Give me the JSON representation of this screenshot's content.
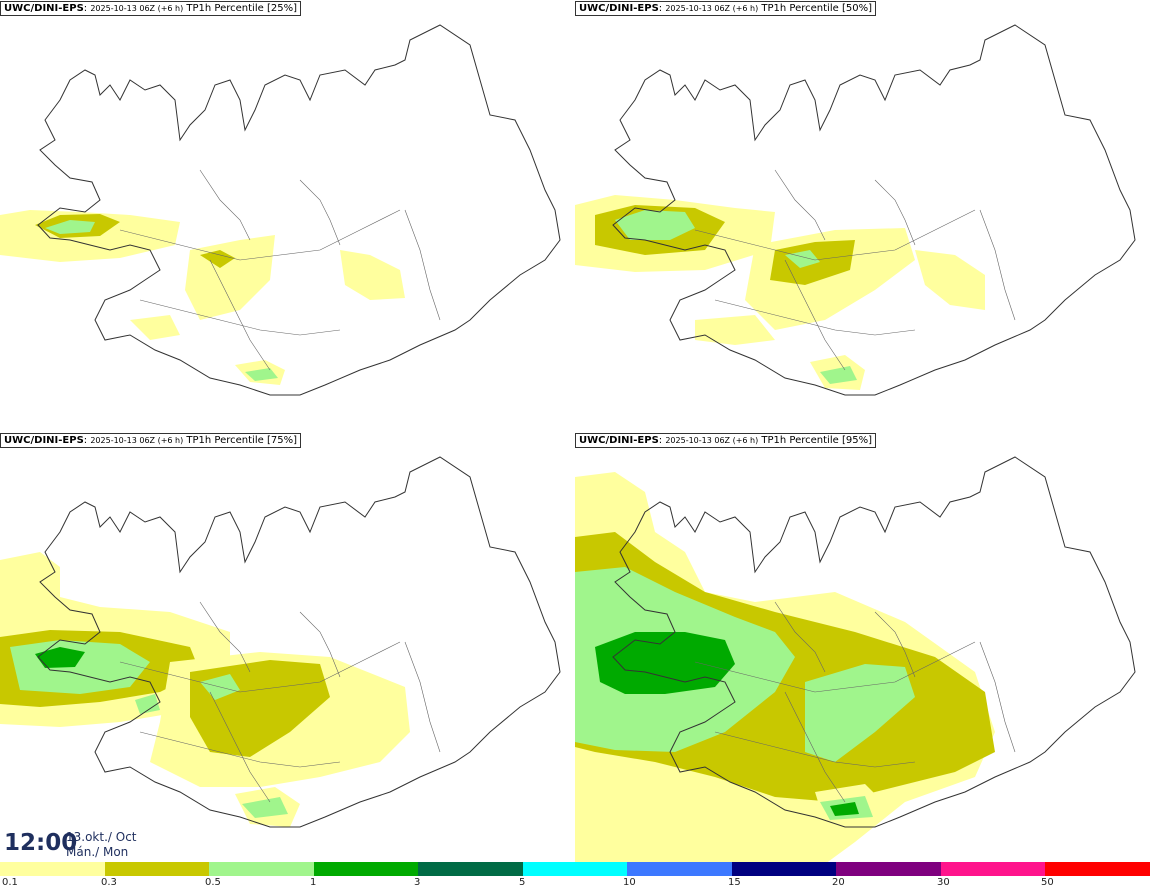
{
  "panels": [
    {
      "source": "UWC/DINI-EPS",
      "run": "2025-10-13 06Z (+6 h)",
      "field": "TP1h Percentile [25%]"
    },
    {
      "source": "UWC/DINI-EPS",
      "run": "2025-10-13 06Z (+6 h)",
      "field": "TP1h Percentile [50%]"
    },
    {
      "source": "UWC/DINI-EPS",
      "run": "2025-10-13 06Z (+6 h)",
      "field": "TP1h Percentile [75%]"
    },
    {
      "source": "UWC/DINI-EPS",
      "run": "2025-10-13 06Z (+6 h)",
      "field": "TP1h Percentile [95%]"
    }
  ],
  "valid_time": {
    "time": "12:00",
    "date_line1": "13.okt./ Oct",
    "date_line2": "Mán./ Mon"
  },
  "legend": {
    "colors": [
      "#ffff9e",
      "#c8c800",
      "#a0f58c",
      "#00aa00",
      "#006b45",
      "#00ffff",
      "#3c78ff",
      "#000080",
      "#7f007f",
      "#ff148c",
      "#ff0000"
    ],
    "ticks": [
      "0.1",
      "0.3",
      "0.5",
      "1",
      "3",
      "5",
      "10",
      "15",
      "20",
      "30",
      "50"
    ]
  }
}
